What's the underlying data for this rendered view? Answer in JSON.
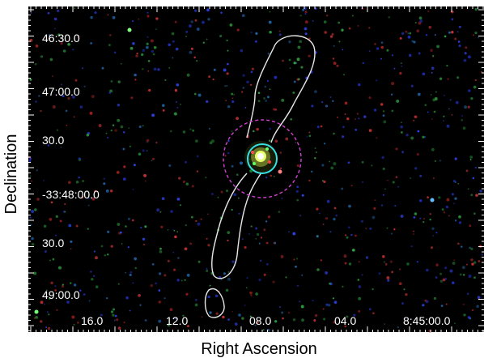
{
  "axes": {
    "xlabel": "Right Ascension",
    "ylabel": "Declination",
    "x_ticks": [
      "16.0",
      "12.0",
      "08.0",
      "04.0",
      "8:45:00.0"
    ],
    "y_ticks": [
      "46:30.0",
      "47:00.0",
      "30.0",
      "-33:48:00.0",
      "30.0",
      "49:00.0"
    ]
  },
  "colors": {
    "background": "#000000",
    "contour": "#e8e8e8",
    "inner_circle": "#38e0e0",
    "outer_circle": "#d040d0",
    "axis_text": "#000000",
    "tick_label": "#ffffff"
  }
}
